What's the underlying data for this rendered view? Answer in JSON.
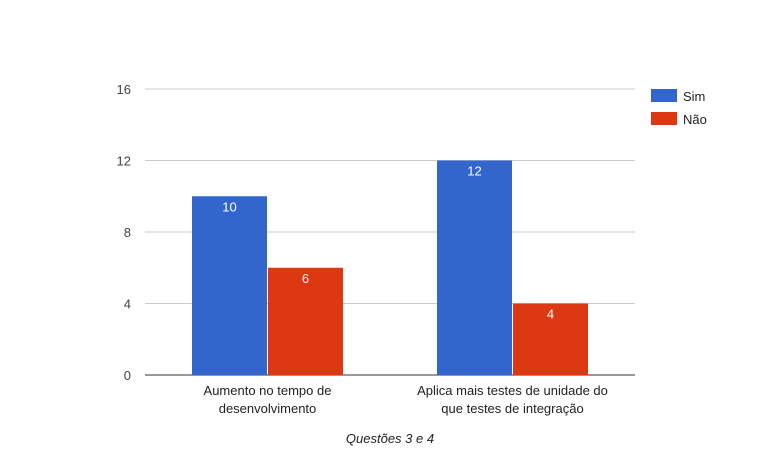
{
  "chart_data": {
    "type": "bar",
    "title": "",
    "xlabel": "Questões 3 e 4",
    "ylabel": "",
    "categories": [
      [
        "Aumento no tempo de",
        "desenvolvimento"
      ],
      [
        "Aplica mais testes de unidade do",
        "que testes de integração"
      ]
    ],
    "series": [
      {
        "name": "Sim",
        "color": "#3366cc",
        "values": [
          10,
          12
        ]
      },
      {
        "name": "Não",
        "color": "#dc3912",
        "values": [
          6,
          4
        ]
      }
    ],
    "ylim": [
      0,
      16
    ],
    "yticks": [
      0,
      4,
      8,
      12,
      16
    ],
    "grid": true,
    "legend": "right",
    "data_labels": true
  }
}
